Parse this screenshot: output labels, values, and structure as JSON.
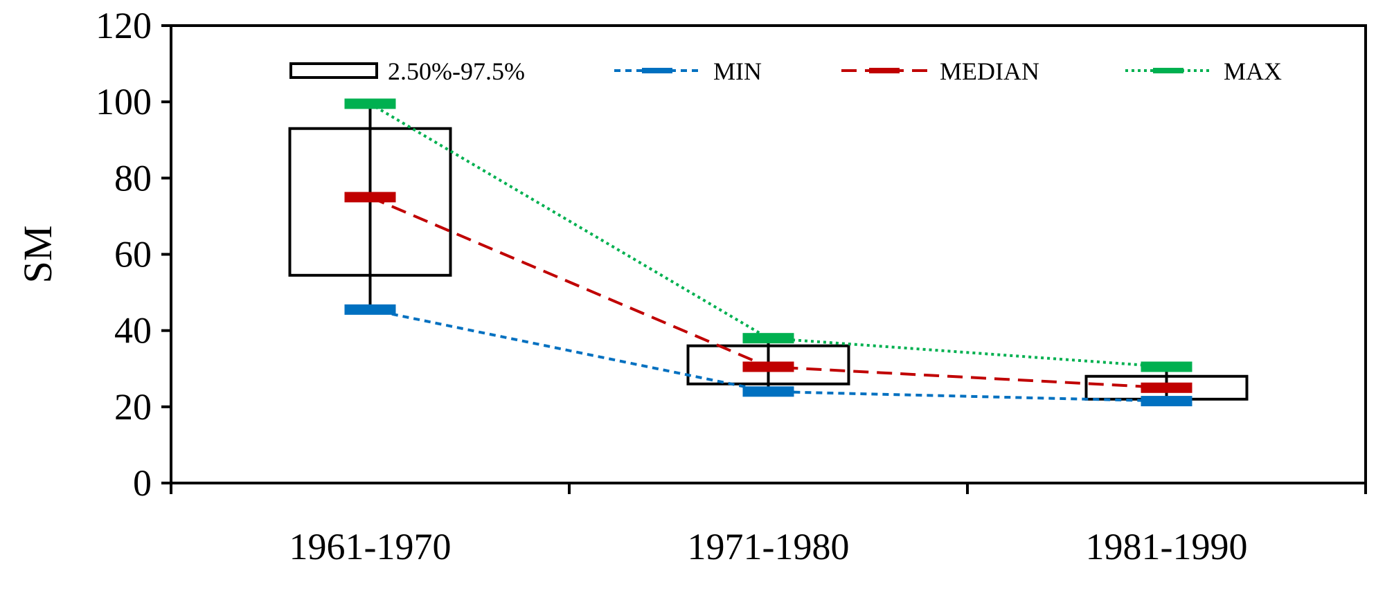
{
  "chart_data": {
    "type": "box",
    "title": "",
    "xlabel": "",
    "ylabel": "SM",
    "ylim": [
      0,
      120
    ],
    "yticks": [
      0,
      20,
      40,
      60,
      80,
      100,
      120
    ],
    "yticks_labels": [
      "0",
      "20",
      "40",
      "60",
      "80",
      "100",
      "120"
    ],
    "categories": [
      "1961-1970",
      "1971-1980",
      "1981-1990"
    ],
    "boxes": [
      {
        "category": "1961-1970",
        "q_low": 54.5,
        "q_high": 93
      },
      {
        "category": "1971-1980",
        "q_low": 26,
        "q_high": 36
      },
      {
        "category": "1981-1990",
        "q_low": 22,
        "q_high": 28
      }
    ],
    "series": [
      {
        "name": "MIN",
        "values": [
          45.5,
          24,
          21.5
        ],
        "color": "#0070C0",
        "style": "dashed"
      },
      {
        "name": "MEDIAN",
        "values": [
          75,
          30.5,
          25
        ],
        "color": "#C00000",
        "style": "longdash"
      },
      {
        "name": "MAX",
        "values": [
          99.5,
          38,
          30.5
        ],
        "color": "#00B050",
        "style": "dotted"
      }
    ],
    "legend": {
      "position": "top-inside",
      "entries": [
        {
          "label": "2.50%-97.5%",
          "kind": "box"
        },
        {
          "label": "MIN",
          "kind": "line",
          "color": "#0070C0"
        },
        {
          "label": "MEDIAN",
          "kind": "line",
          "color": "#C00000"
        },
        {
          "label": "MAX",
          "kind": "line",
          "color": "#00B050"
        }
      ]
    }
  }
}
